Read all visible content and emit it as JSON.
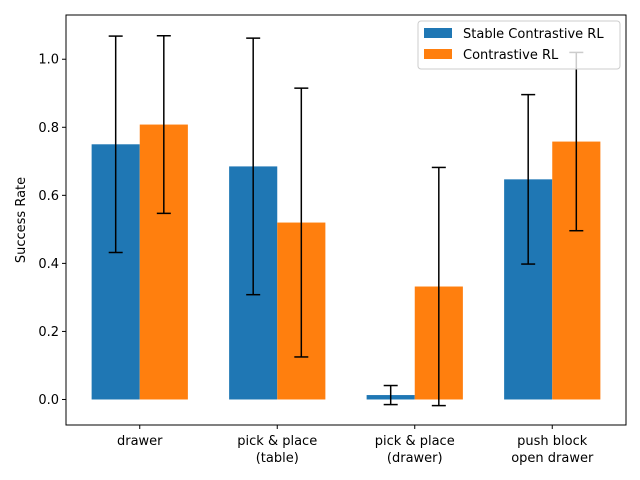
{
  "chart_data": {
    "type": "bar",
    "title": "",
    "xlabel": "",
    "ylabel": "Success Rate",
    "ylim": [
      -0.075,
      1.13
    ],
    "yticks": [
      "0.0",
      "0.2",
      "0.4",
      "0.6",
      "0.8",
      "1.0"
    ],
    "categories": [
      [
        "drawer"
      ],
      [
        "pick & place",
        "(table)"
      ],
      [
        "pick & place",
        "(drawer)"
      ],
      [
        "push block",
        "open drawer"
      ]
    ],
    "legend_position": "top-right",
    "grid": false,
    "series": [
      {
        "name": "Stable Contrastive RL",
        "color": "#1f77b4",
        "values": [
          0.75,
          0.685,
          0.013,
          0.647
        ],
        "error": [
          0.318,
          0.377,
          0.028,
          0.249
        ]
      },
      {
        "name": "Contrastive RL",
        "color": "#ff7f0e",
        "values": [
          0.808,
          0.52,
          0.332,
          0.758
        ],
        "error": [
          0.261,
          0.395,
          0.35,
          0.262
        ]
      }
    ]
  }
}
